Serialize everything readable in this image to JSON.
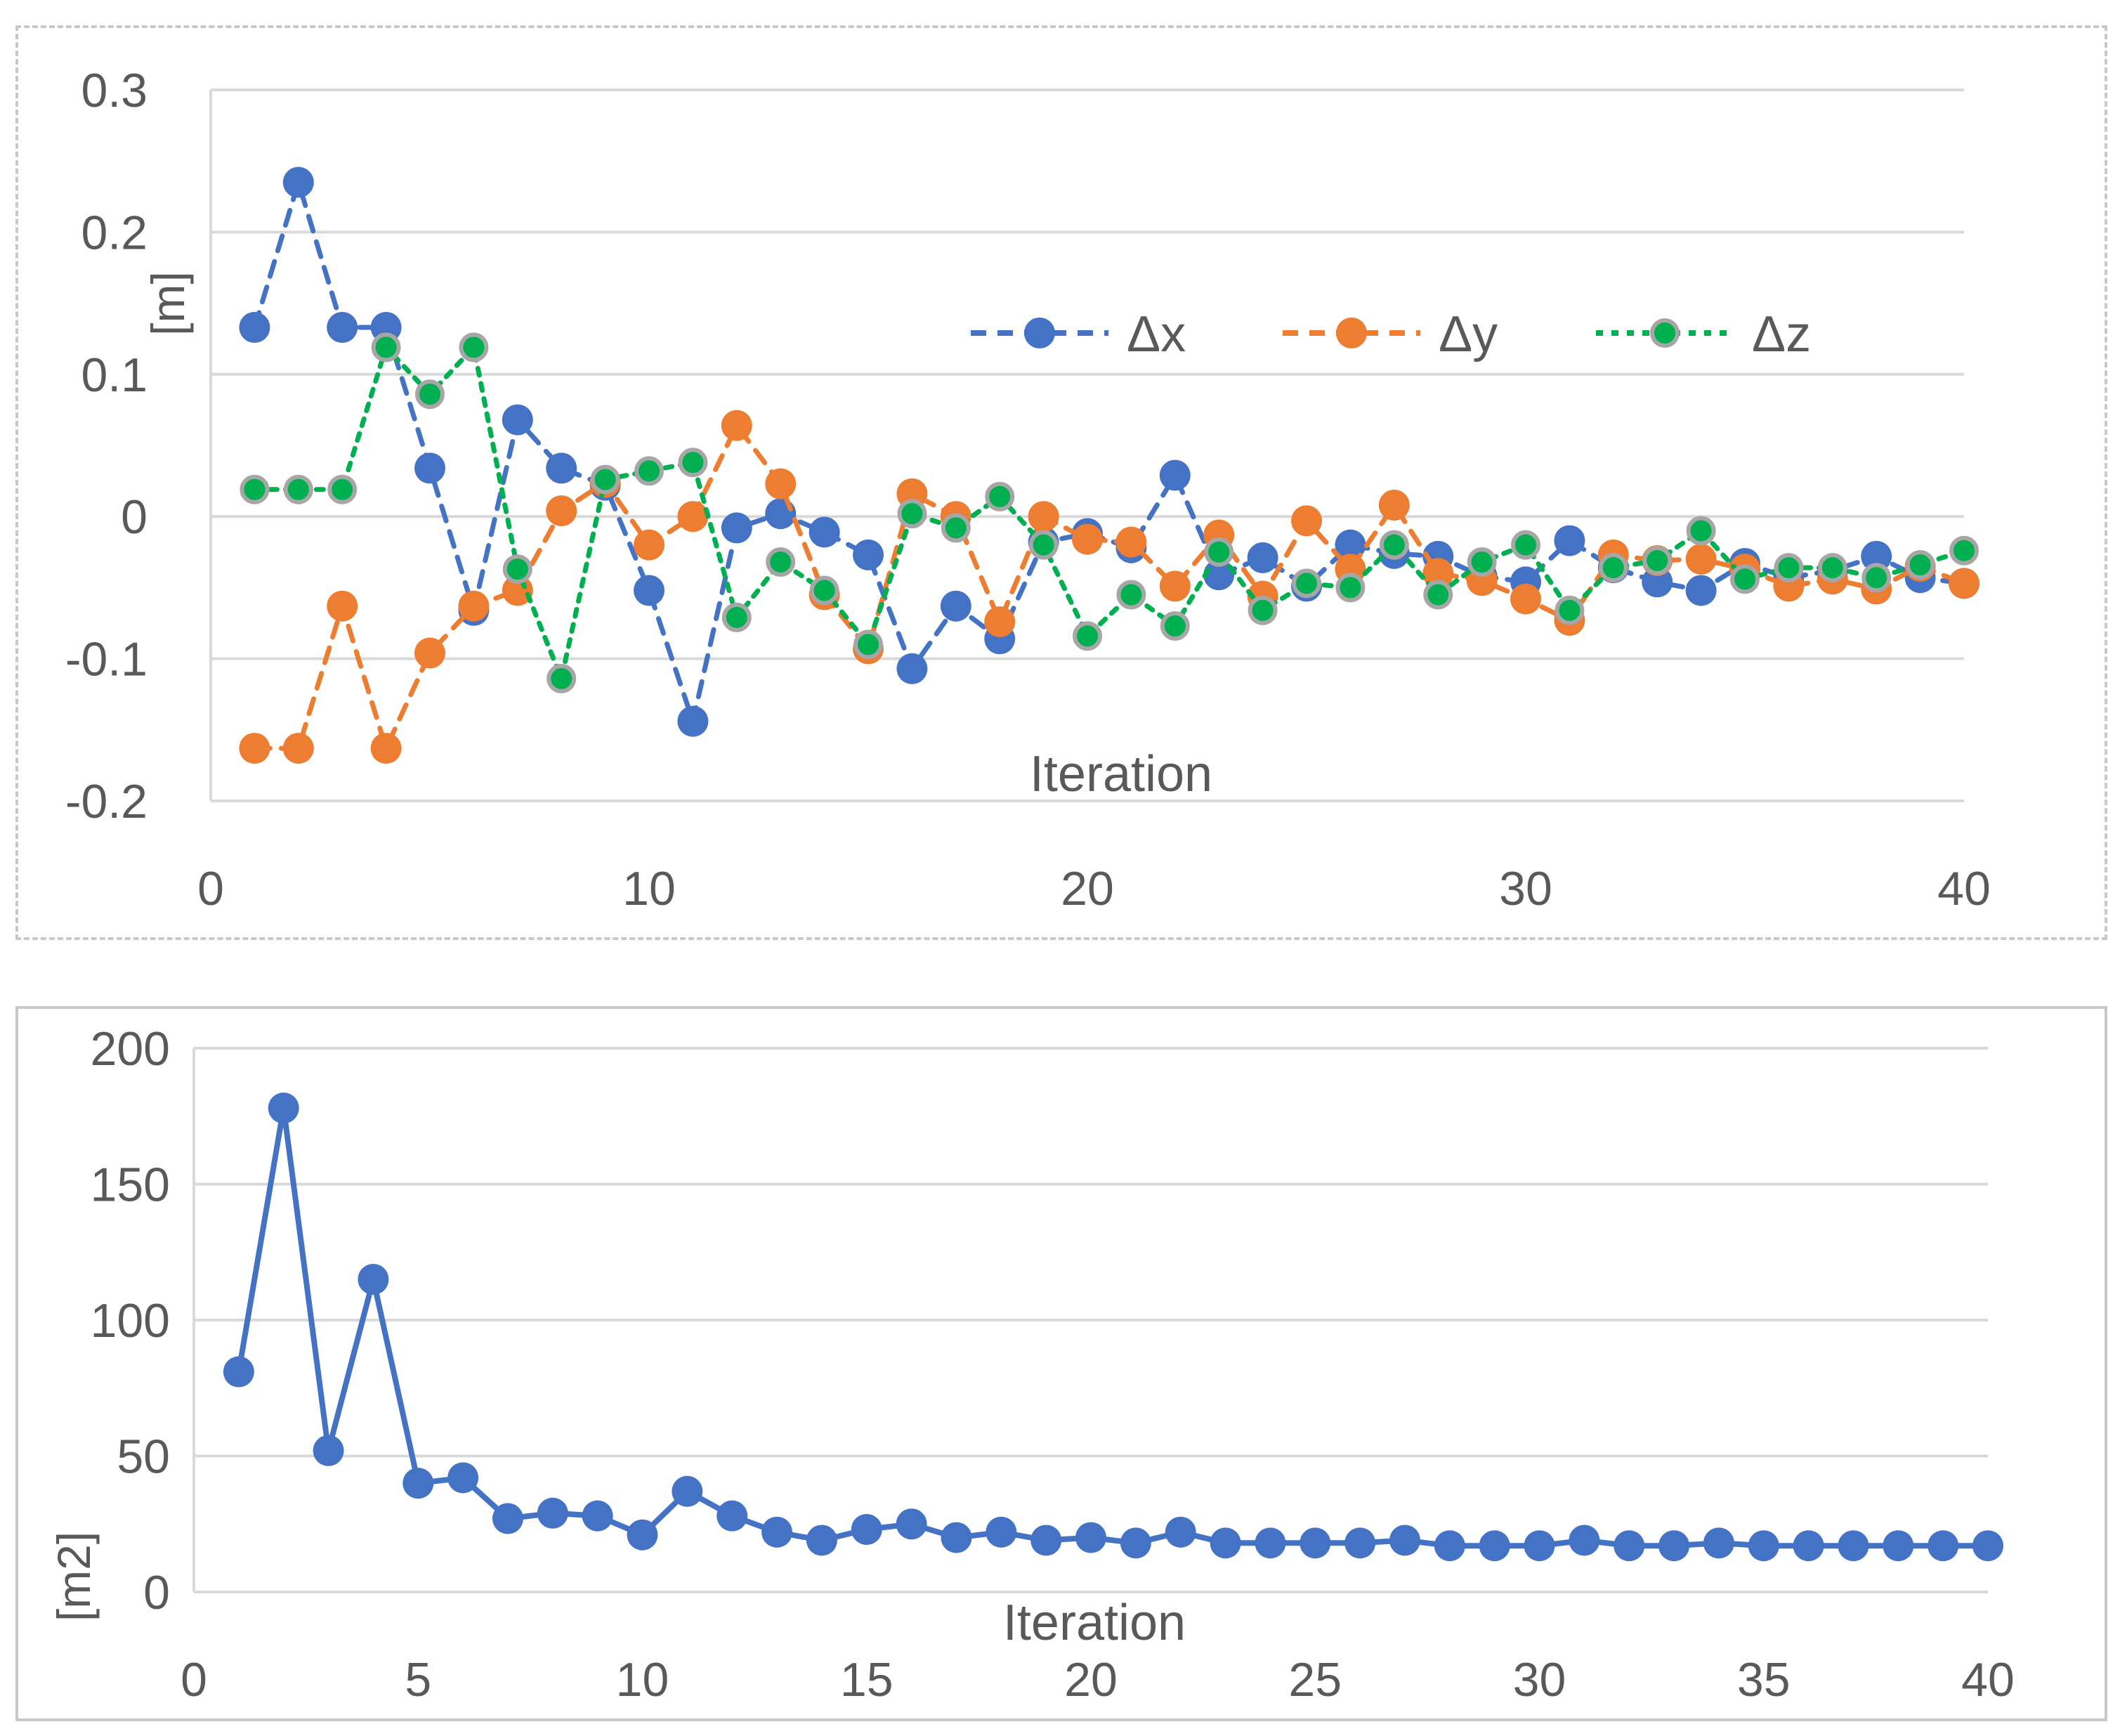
{
  "chart_data": [
    {
      "type": "line",
      "title": "",
      "xlabel": "Iteration",
      "ylabel": "[m]",
      "xlim": [
        0,
        40
      ],
      "ylim": [
        -0.2,
        0.3
      ],
      "xticks": [
        0,
        10,
        20,
        30,
        40
      ],
      "xtick_labels": [
        "0",
        "10",
        "20",
        "30",
        "40"
      ],
      "yticks": [
        -0.2,
        -0.1,
        0,
        0.1,
        0.2,
        0.3
      ],
      "ytick_labels": [
        "-0.2",
        "-0.1",
        "0",
        "0.1",
        "0.2",
        "0.3"
      ],
      "grid": true,
      "legend_position": "center-right",
      "x": [
        1,
        2,
        3,
        4,
        5,
        6,
        7,
        8,
        9,
        10,
        11,
        12,
        13,
        14,
        15,
        16,
        17,
        18,
        19,
        20,
        21,
        22,
        23,
        24,
        25,
        26,
        27,
        28,
        29,
        30,
        31,
        32,
        33,
        34,
        35,
        36,
        37,
        38,
        39,
        40
      ],
      "series": [
        {
          "name": "Δx",
          "color": "#4472c4",
          "dash": "dash",
          "values": [
            0.133,
            0.235,
            0.133,
            0.133,
            0.034,
            -0.066,
            0.068,
            0.034,
            0.022,
            -0.052,
            -0.144,
            -0.008,
            0.002,
            -0.011,
            -0.027,
            -0.107,
            -0.063,
            -0.086,
            -0.018,
            -0.012,
            -0.022,
            0.029,
            -0.041,
            -0.029,
            -0.049,
            -0.02,
            -0.026,
            -0.028,
            -0.042,
            -0.046,
            -0.017,
            -0.036,
            -0.046,
            -0.052,
            -0.033,
            -0.043,
            -0.038,
            -0.028,
            -0.043,
            -0.047
          ]
        },
        {
          "name": "Δy",
          "color": "#ed7d31",
          "dash": "dash",
          "values": [
            -0.163,
            -0.163,
            -0.063,
            -0.163,
            -0.096,
            -0.063,
            -0.052,
            0.004,
            0.024,
            -0.02,
            0.0,
            0.064,
            0.023,
            -0.055,
            -0.093,
            0.016,
            0.0,
            -0.074,
            0.0,
            -0.016,
            -0.018,
            -0.049,
            -0.013,
            -0.056,
            -0.003,
            -0.037,
            0.008,
            -0.04,
            -0.045,
            -0.058,
            -0.073,
            -0.027,
            -0.031,
            -0.03,
            -0.037,
            -0.049,
            -0.044,
            -0.051,
            -0.035,
            -0.047
          ]
        },
        {
          "name": "Δz",
          "color": "#00b050",
          "dash": "dot",
          "values": [
            0.019,
            0.019,
            0.019,
            0.119,
            0.086,
            0.119,
            -0.037,
            -0.114,
            0.026,
            0.032,
            0.038,
            -0.071,
            -0.032,
            -0.052,
            -0.09,
            0.002,
            -0.008,
            0.014,
            -0.02,
            -0.084,
            -0.055,
            -0.077,
            -0.025,
            -0.066,
            -0.047,
            -0.05,
            -0.02,
            -0.055,
            -0.032,
            -0.02,
            -0.066,
            -0.036,
            -0.031,
            -0.01,
            -0.044,
            -0.036,
            -0.036,
            -0.043,
            -0.034,
            -0.024
          ]
        }
      ]
    },
    {
      "type": "line",
      "title": "",
      "xlabel": "Iteration",
      "ylabel": "[m2]",
      "xlim": [
        0,
        40
      ],
      "ylim": [
        0,
        200
      ],
      "xticks": [
        0,
        5,
        10,
        15,
        20,
        25,
        30,
        35,
        40
      ],
      "xtick_labels": [
        "0",
        "5",
        "10",
        "15",
        "20",
        "25",
        "30",
        "35",
        "40"
      ],
      "yticks": [
        0,
        50,
        100,
        150,
        200
      ],
      "ytick_labels": [
        "0",
        "50",
        "100",
        "150",
        "200"
      ],
      "grid": true,
      "x": [
        1,
        2,
        3,
        4,
        5,
        6,
        7,
        8,
        9,
        10,
        11,
        12,
        13,
        14,
        15,
        16,
        17,
        18,
        19,
        20,
        21,
        22,
        23,
        24,
        25,
        26,
        27,
        28,
        29,
        30,
        31,
        32,
        33,
        34,
        35,
        36,
        37,
        38,
        39,
        40
      ],
      "series": [
        {
          "name": "",
          "color": "#4472c4",
          "dash": "solid",
          "values": [
            81,
            178,
            52,
            115,
            40,
            42,
            27,
            29,
            28,
            21,
            37,
            28,
            22,
            19,
            23,
            25,
            20,
            22,
            19,
            20,
            18,
            22,
            18,
            18,
            18,
            18,
            19,
            17,
            17,
            17,
            19,
            17,
            17,
            18,
            17,
            17,
            17,
            17,
            17,
            17
          ]
        }
      ]
    }
  ]
}
